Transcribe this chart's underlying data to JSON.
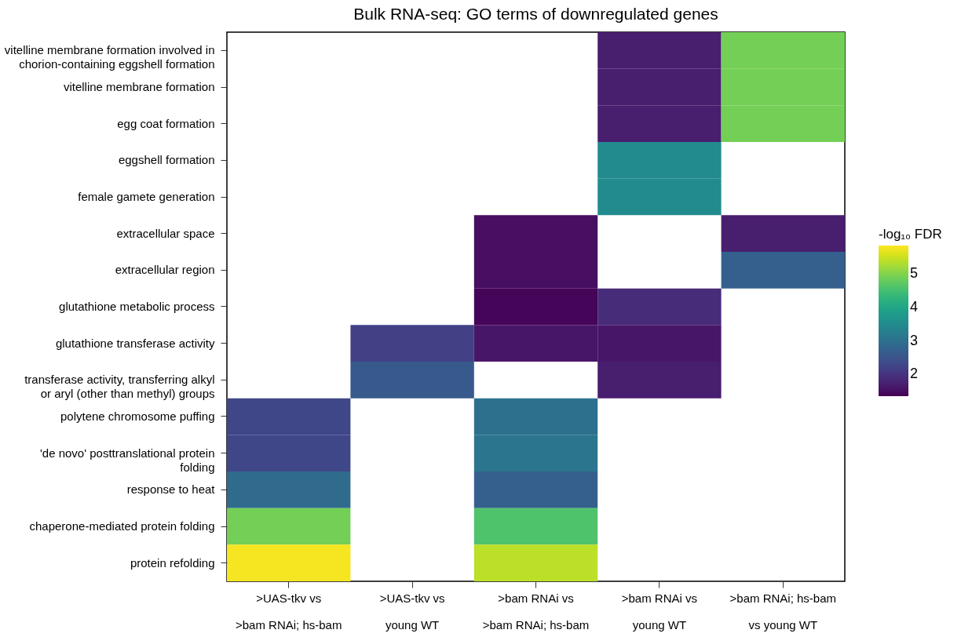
{
  "chart_data": {
    "type": "heatmap",
    "title": "Bulk RNA-seq: GO terms of downregulated genes",
    "categories": [
      ">UAS-tkv vs\n>bam RNAi; hs-bam",
      ">UAS-tkv vs\nyoung WT",
      ">bam RNAi vs\n>bam RNAi; hs-bam",
      ">bam RNAi vs\nyoung WT",
      ">bam RNAi; hs-bam\nvs young WT"
    ],
    "y_categories": [
      "vitelline membrane formation involved in\nchorion-containing eggshell formation",
      "vitelline membrane formation",
      "egg coat formation",
      "eggshell formation",
      "female gamete generation",
      "extracellular space",
      "extracellular region",
      "glutathione metabolic process",
      "glutathione transferase activity",
      "transferase activity, transferring alkyl\nor aryl (other than methyl) groups",
      "polytene chromosome puffing",
      "'de novo' posttranslational protein\nfolding",
      "response to heat",
      "chaperone-mediated protein folding",
      "protein refolding"
    ],
    "cells": [
      [
        null,
        null,
        null,
        1.7,
        4.9
      ],
      [
        null,
        null,
        null,
        1.7,
        4.9
      ],
      [
        null,
        null,
        null,
        1.7,
        4.9
      ],
      [
        null,
        null,
        null,
        3.5,
        null
      ],
      [
        null,
        null,
        null,
        3.5,
        null
      ],
      [
        null,
        null,
        1.5,
        null,
        1.7
      ],
      [
        null,
        null,
        1.5,
        null,
        2.7
      ],
      [
        null,
        null,
        1.4,
        1.9,
        null
      ],
      [
        null,
        2.2,
        1.6,
        1.6,
        null
      ],
      [
        null,
        2.6,
        null,
        1.7,
        null
      ],
      [
        2.3,
        null,
        3.0,
        null,
        null
      ],
      [
        2.3,
        null,
        3.1,
        null,
        null
      ],
      [
        2.9,
        null,
        2.7,
        null,
        null
      ],
      [
        4.9,
        null,
        4.6,
        null,
        null
      ],
      [
        5.8,
        null,
        5.4,
        null,
        null
      ]
    ],
    "legend_title": "-log₁₀ FDR",
    "clim": [
      1.35,
      5.85
    ],
    "cticks": [
      2,
      3,
      4,
      5
    ],
    "grid": false
  }
}
